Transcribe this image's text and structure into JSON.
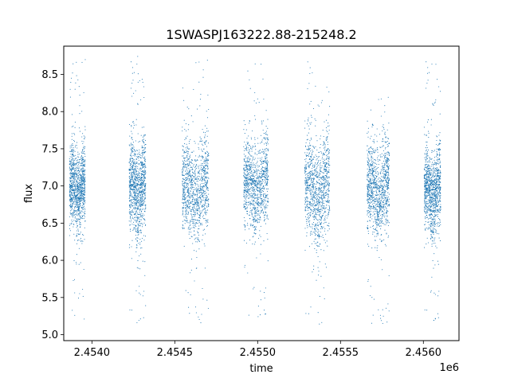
{
  "chart_data": {
    "type": "scatter",
    "title": "1SWASPJ163222.88-215248.2",
    "xlabel": "time",
    "ylabel": "flux",
    "x_offset_label": "1e6",
    "xlim": [
      2453830,
      2456215
    ],
    "ylim": [
      4.92,
      8.88
    ],
    "x_ticks": [
      2454000,
      2454500,
      2455000,
      2455500,
      2456000
    ],
    "x_tick_labels": [
      "2.4540",
      "2.4545",
      "2.4550",
      "2.4555",
      "2.4560"
    ],
    "y_ticks": [
      5.0,
      5.5,
      6.0,
      6.5,
      7.0,
      7.5,
      8.0,
      8.5
    ],
    "y_tick_labels": [
      "5.0",
      "5.5",
      "6.0",
      "6.5",
      "7.0",
      "7.5",
      "8.0",
      "8.5"
    ],
    "grid": false,
    "marker_color": "#1f77b4",
    "series": [
      {
        "season_clusters": [
          {
            "x_range": [
              2453865,
              2453960
            ],
            "y_center": 6.95,
            "y_spread": 0.45,
            "y_range": [
              5.2,
              8.75
            ]
          },
          {
            "x_range": [
              2454225,
              2454325
            ],
            "y_center": 6.95,
            "y_spread": 0.5,
            "y_range": [
              5.15,
              8.75
            ]
          },
          {
            "x_range": [
              2454545,
              2454705
            ],
            "y_center": 6.95,
            "y_spread": 0.5,
            "y_range": [
              5.1,
              8.7
            ]
          },
          {
            "x_range": [
              2454915,
              2455065
            ],
            "y_center": 7.0,
            "y_spread": 0.5,
            "y_range": [
              5.2,
              8.75
            ]
          },
          {
            "x_range": [
              2455285,
              2455435
            ],
            "y_center": 6.95,
            "y_spread": 0.55,
            "y_range": [
              5.1,
              8.75
            ]
          },
          {
            "x_range": [
              2455660,
              2455795
            ],
            "y_center": 6.95,
            "y_spread": 0.5,
            "y_range": [
              5.1,
              8.2
            ]
          },
          {
            "x_range": [
              2456005,
              2456105
            ],
            "y_center": 6.9,
            "y_spread": 0.45,
            "y_range": [
              5.15,
              8.75
            ]
          }
        ]
      }
    ]
  }
}
